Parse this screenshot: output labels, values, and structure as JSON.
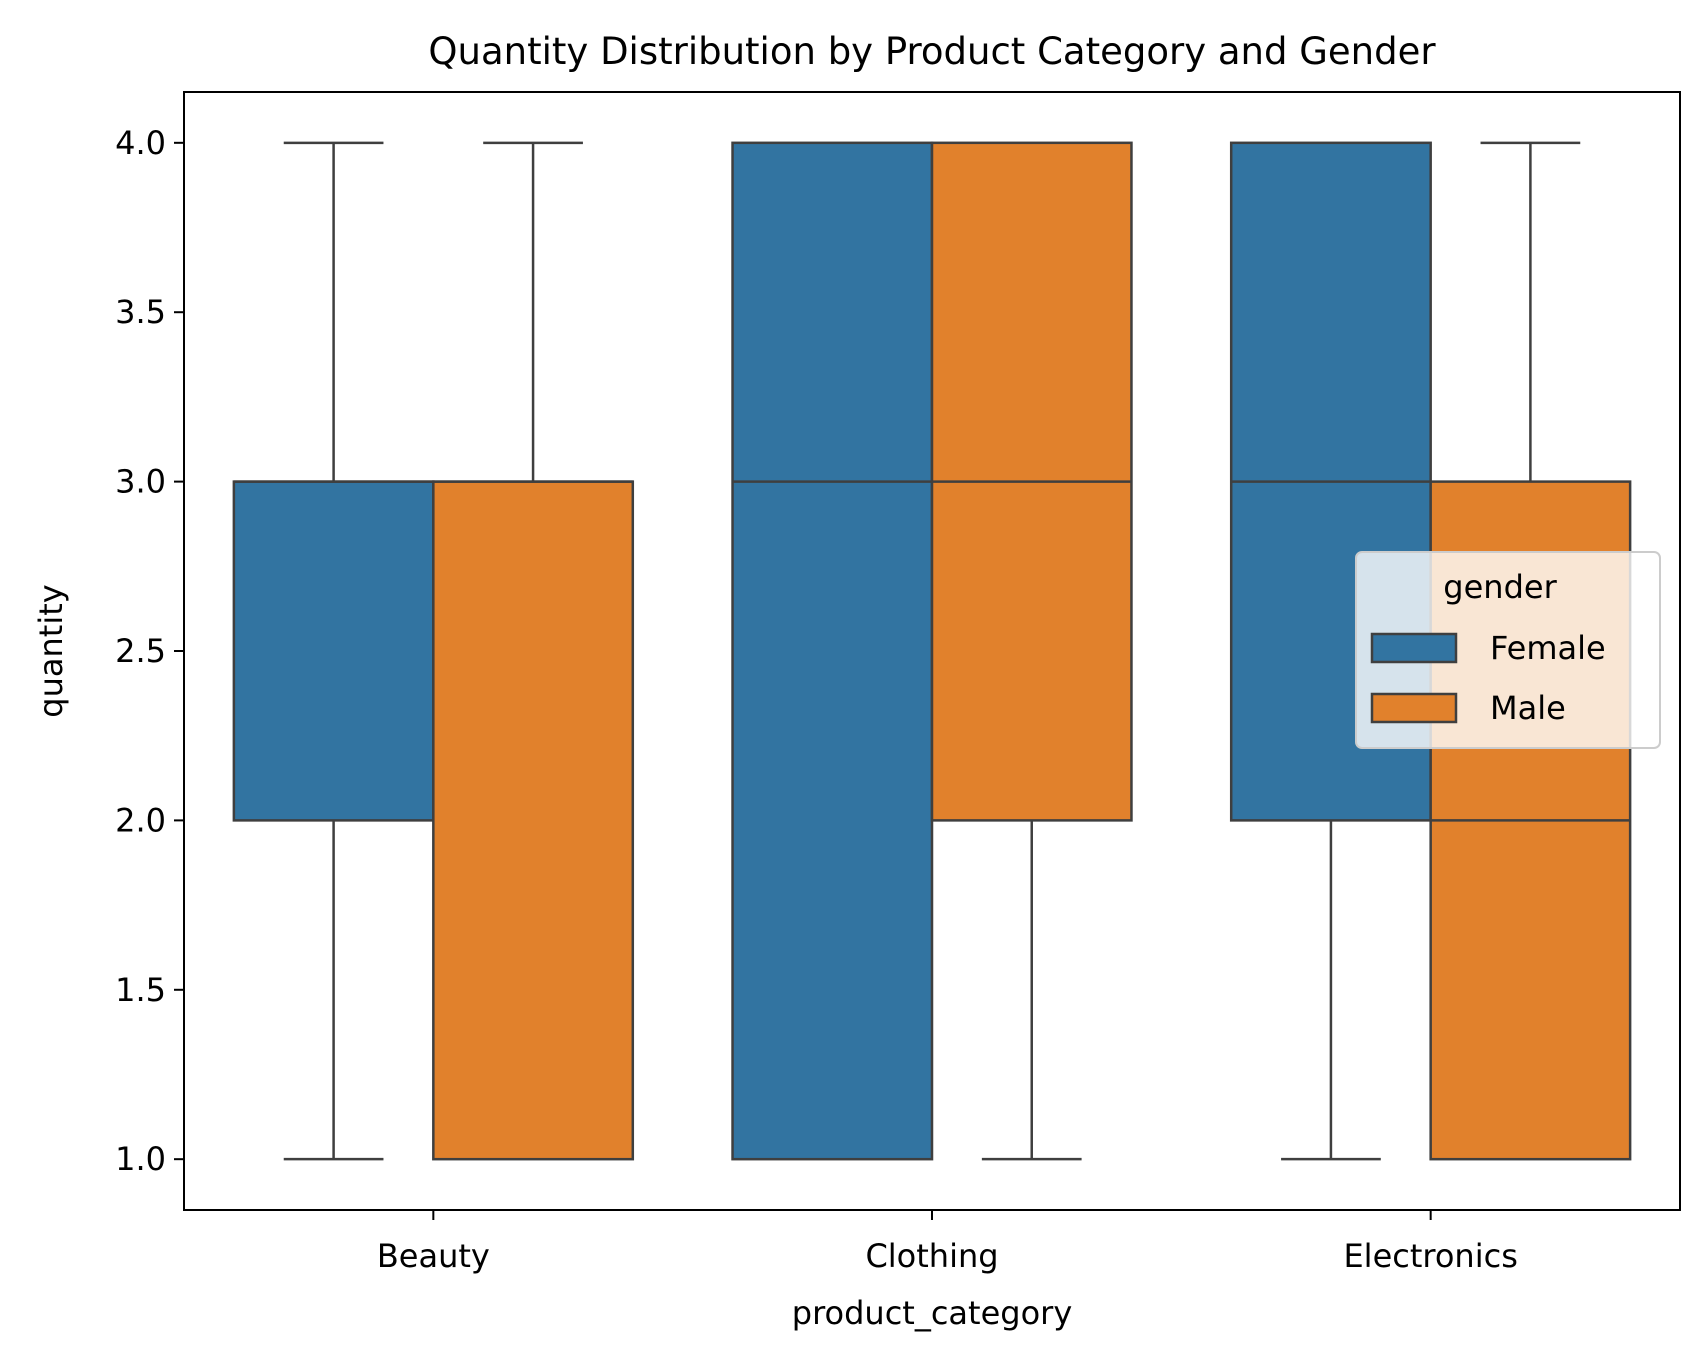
{
  "chart_data": {
    "type": "box",
    "title": "Quantity Distribution by Product Category and Gender",
    "xlabel": "product_category",
    "ylabel": "quantity",
    "categories": [
      "Beauty",
      "Clothing",
      "Electronics"
    ],
    "ylim": [
      0.85,
      4.15
    ],
    "yticks": [
      1.0,
      1.5,
      2.0,
      2.5,
      3.0,
      3.5,
      4.0
    ],
    "ytick_labels": [
      "1.0",
      "1.5",
      "2.0",
      "2.5",
      "3.0",
      "3.5",
      "4.0"
    ],
    "grid": false,
    "legend": {
      "title": "gender",
      "placement": "center-right",
      "entries": [
        "Female",
        "Male"
      ]
    },
    "series": [
      {
        "name": "Female",
        "color": "#3274a1",
        "boxes": [
          {
            "category": "Beauty",
            "whislo": 1,
            "q1": 2,
            "median": 3,
            "q3": 3,
            "whishi": 4
          },
          {
            "category": "Clothing",
            "whislo": 1,
            "q1": 1,
            "median": 3,
            "q3": 4,
            "whishi": 4
          },
          {
            "category": "Electronics",
            "whislo": 1,
            "q1": 2,
            "median": 3,
            "q3": 4,
            "whishi": 4
          }
        ]
      },
      {
        "name": "Male",
        "color": "#e1812c",
        "boxes": [
          {
            "category": "Beauty",
            "whislo": 1,
            "q1": 1,
            "median": 3,
            "q3": 3,
            "whishi": 4
          },
          {
            "category": "Clothing",
            "whislo": 1,
            "q1": 2,
            "median": 3,
            "q3": 4,
            "whishi": 4
          },
          {
            "category": "Electronics",
            "whislo": 1,
            "q1": 1,
            "median": 2,
            "q3": 3,
            "whishi": 4
          }
        ]
      }
    ],
    "edge_color": "#3f3f3f"
  }
}
